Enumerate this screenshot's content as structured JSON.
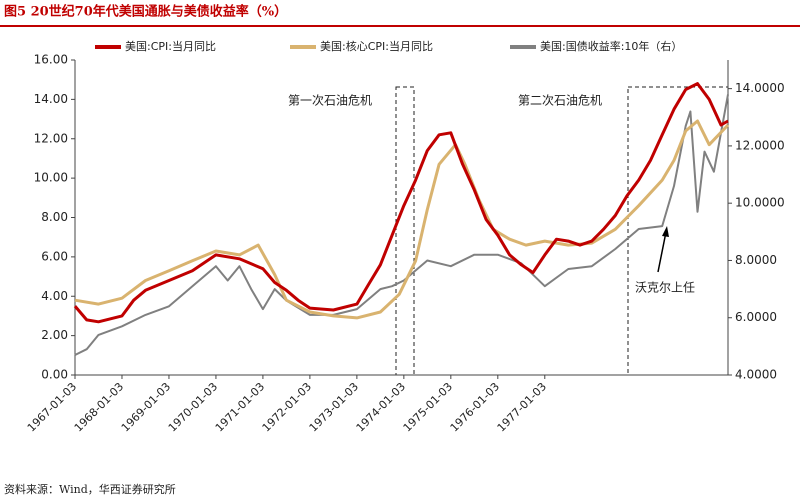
{
  "chart_data": {
    "type": "line",
    "title": "图5 20世纪70年代美国通胀与美债收益率（%）",
    "source": "资料来源：Wind，华西证券研究所",
    "annotations": [
      "第一次石油危机",
      "第二次石油危机",
      "沃克尔上任"
    ],
    "xlim": [
      1967,
      1980.9
    ],
    "xticks": [
      {
        "value": 1967,
        "label": "1967-01-03"
      },
      {
        "value": 1968,
        "label": "1968-01-03"
      },
      {
        "value": 1969,
        "label": "1969-01-03"
      },
      {
        "value": 1970,
        "label": "1970-01-03"
      },
      {
        "value": 1971,
        "label": "1971-01-03"
      },
      {
        "value": 1972,
        "label": "1972-01-03"
      },
      {
        "value": 1973,
        "label": "1973-01-03"
      },
      {
        "value": 1974,
        "label": "1974-01-03"
      },
      {
        "value": 1975,
        "label": "1975-01-03"
      },
      {
        "value": 1976,
        "label": "1976-01-03"
      },
      {
        "value": 1977,
        "label": "1977-01-03"
      }
    ],
    "ylim": [
      0,
      16
    ],
    "yticks": [
      {
        "value": 0,
        "label": "0.00"
      },
      {
        "value": 2,
        "label": "2.00"
      },
      {
        "value": 4,
        "label": "4.00"
      },
      {
        "value": 6,
        "label": "6.00"
      },
      {
        "value": 8,
        "label": "8.00"
      },
      {
        "value": 10,
        "label": "10.00"
      },
      {
        "value": 12,
        "label": "12.00"
      },
      {
        "value": 14,
        "label": "14.00"
      },
      {
        "value": 16,
        "label": "16.00"
      }
    ],
    "y2lim": [
      4,
      15
    ],
    "y2ticks": [
      {
        "value": 4,
        "label": "4.0000"
      },
      {
        "value": 6,
        "label": "6.0000"
      },
      {
        "value": 8,
        "label": "8.0000"
      },
      {
        "value": 10,
        "label": "10.0000"
      },
      {
        "value": 12,
        "label": "12.0000"
      },
      {
        "value": 14,
        "label": "14.0000"
      }
    ],
    "series": [
      {
        "name": "美国:CPI:当月同比",
        "color": "#c00000",
        "x": [
          1967.0,
          1967.25,
          1967.5,
          1968.0,
          1968.25,
          1968.5,
          1969.0,
          1969.5,
          1970.0,
          1970.5,
          1971.0,
          1971.25,
          1971.5,
          1971.75,
          1972.0,
          1972.5,
          1973.0,
          1973.25,
          1973.5,
          1973.75,
          1974.0,
          1974.25,
          1974.5,
          1974.75,
          1975.0,
          1975.25,
          1975.5,
          1975.75,
          1976.0,
          1976.25,
          1976.5,
          1976.75,
          1977.0,
          1977.25,
          1977.5,
          1977.75,
          1978.0,
          1978.25,
          1978.5,
          1978.75,
          1979.0,
          1979.25,
          1979.5,
          1979.75,
          1980.0,
          1980.25,
          1980.5,
          1980.75,
          1980.9
        ],
        "values": [
          3.5,
          2.8,
          2.7,
          3.0,
          3.8,
          4.3,
          4.8,
          5.3,
          6.1,
          5.9,
          5.4,
          4.7,
          4.3,
          3.8,
          3.4,
          3.3,
          3.6,
          4.6,
          5.6,
          7.1,
          8.6,
          9.9,
          11.4,
          12.2,
          12.3,
          10.7,
          9.4,
          7.9,
          7.1,
          6.1,
          5.6,
          5.2,
          6.1,
          6.9,
          6.8,
          6.6,
          6.8,
          7.4,
          8.1,
          9.1,
          9.9,
          10.9,
          12.2,
          13.5,
          14.5,
          14.8,
          14.0,
          12.7,
          12.9
        ]
      },
      {
        "name": "美国:核心CPI:当月同比",
        "color": "#d9b36f",
        "x": [
          1967.0,
          1967.5,
          1968.0,
          1968.5,
          1969.0,
          1969.5,
          1970.0,
          1970.5,
          1970.9,
          1971.25,
          1971.5,
          1972.0,
          1972.5,
          1973.0,
          1973.5,
          1973.9,
          1974.25,
          1974.5,
          1974.75,
          1975.1,
          1975.3,
          1975.6,
          1975.9,
          1976.25,
          1976.6,
          1977.0,
          1977.5,
          1978.0,
          1978.5,
          1979.0,
          1979.5,
          1979.75,
          1980.0,
          1980.25,
          1980.5,
          1980.9
        ],
        "values": [
          3.8,
          3.6,
          3.9,
          4.8,
          5.3,
          5.8,
          6.3,
          6.1,
          6.6,
          5.1,
          3.8,
          3.2,
          3.0,
          2.9,
          3.2,
          4.1,
          5.8,
          8.4,
          10.7,
          11.7,
          10.7,
          8.9,
          7.4,
          6.9,
          6.6,
          6.8,
          6.6,
          6.7,
          7.4,
          8.6,
          9.9,
          10.9,
          12.4,
          12.9,
          11.7,
          12.7
        ]
      },
      {
        "name": "美国:国债收益率:10年（右）",
        "color": "#808080",
        "axis": "y2",
        "x": [
          1967.0,
          1967.25,
          1967.5,
          1968.0,
          1968.5,
          1969.0,
          1969.5,
          1970.0,
          1970.25,
          1970.5,
          1970.75,
          1971.0,
          1971.25,
          1971.5,
          1972.0,
          1972.5,
          1973.0,
          1973.5,
          1973.75,
          1974.0,
          1974.5,
          1975.0,
          1975.5,
          1976.0,
          1976.5,
          1977.0,
          1977.5,
          1978.0,
          1978.5,
          1979.0,
          1979.5,
          1979.75,
          1980.0,
          1980.1,
          1980.25,
          1980.4,
          1980.6,
          1980.9
        ],
        "values": [
          4.7,
          4.9,
          5.4,
          5.7,
          6.1,
          6.4,
          7.1,
          7.8,
          7.3,
          7.8,
          7.0,
          6.3,
          7.0,
          6.6,
          6.1,
          6.1,
          6.3,
          7.0,
          7.1,
          7.3,
          8.0,
          7.8,
          8.2,
          8.2,
          7.9,
          7.1,
          7.7,
          7.8,
          8.4,
          9.1,
          9.2,
          10.6,
          12.7,
          13.2,
          9.7,
          11.8,
          11.1,
          13.8
        ]
      }
    ]
  }
}
